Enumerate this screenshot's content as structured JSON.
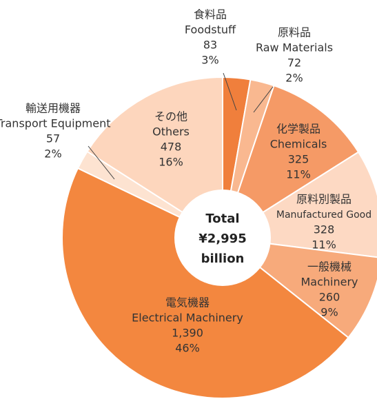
{
  "chart_data": {
    "type": "donut",
    "center_lines": [
      "Total",
      "¥2,995",
      "billion"
    ],
    "categories_ja": [
      "食料品",
      "原料品",
      "化学製品",
      "原料別製品",
      "一般機械",
      "電気機器",
      "輸送用機器",
      "その他"
    ],
    "categories": [
      "Foodstuff",
      "Raw Materials",
      "Chemicals",
      "Manufactured Good",
      "Machinery",
      "Electrical Machinery",
      "Transport Equipment",
      "Others"
    ],
    "values": [
      83,
      72,
      325,
      328,
      260,
      1390,
      57,
      478
    ],
    "value_labels": [
      "83",
      "72",
      "325",
      "328",
      "260",
      "1,390",
      "57",
      "478"
    ],
    "percent_labels": [
      "3%",
      "2%",
      "11%",
      "11%",
      "9%",
      "46%",
      "2%",
      "16%"
    ],
    "colors": [
      "#f07f3c",
      "#f9b890",
      "#f59a66",
      "#fdd9c3",
      "#f7aa7b",
      "#f3873f",
      "#fde3d1",
      "#fdd6bd"
    ]
  }
}
